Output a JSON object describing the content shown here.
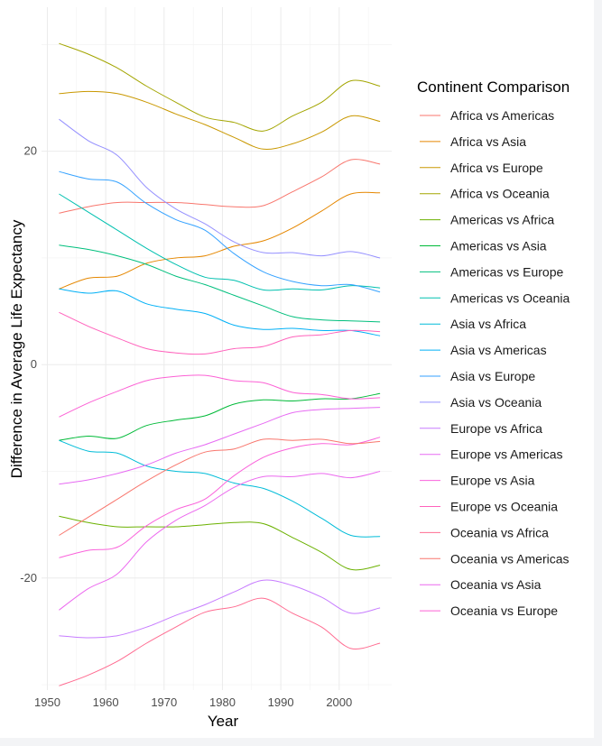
{
  "chart_data": {
    "type": "line",
    "title": "",
    "xlabel": "Year",
    "ylabel": "Difference in Average Life Expectancy",
    "xlim": [
      1949,
      2009
    ],
    "ylim": [
      -30.5,
      33.5
    ],
    "x_ticks": [
      1950,
      1960,
      1970,
      1980,
      1990,
      2000
    ],
    "y_ticks": [
      20,
      0,
      -20
    ],
    "grid": true,
    "legend": {
      "title": "Continent Comparison",
      "position": "right"
    },
    "x": [
      1952,
      1957,
      1962,
      1967,
      1972,
      1977,
      1982,
      1987,
      1992,
      1997,
      2002,
      2007
    ],
    "series": [
      {
        "name": "Africa vs Americas",
        "color": "#F8766D",
        "values": [
          14.2,
          14.8,
          15.2,
          15.2,
          15.2,
          15.0,
          14.8,
          14.9,
          16.2,
          17.6,
          19.2,
          18.8
        ]
      },
      {
        "name": "Africa vs Asia",
        "color": "#E58700",
        "values": [
          7.1,
          8.1,
          8.3,
          9.5,
          10.0,
          10.2,
          11.1,
          11.6,
          12.8,
          14.4,
          16.0,
          16.1
        ]
      },
      {
        "name": "Africa vs Europe",
        "color": "#C99800",
        "values": [
          25.4,
          25.6,
          25.4,
          24.6,
          23.5,
          22.5,
          21.3,
          20.2,
          20.7,
          21.8,
          23.3,
          22.8
        ]
      },
      {
        "name": "Africa vs Oceania",
        "color": "#A3A500",
        "values": [
          30.1,
          29.1,
          27.8,
          26.1,
          24.6,
          23.2,
          22.7,
          21.9,
          23.3,
          24.6,
          26.6,
          26.1
        ]
      },
      {
        "name": "Americas vs Africa",
        "color": "#6BB100",
        "values": [
          -14.2,
          -14.8,
          -15.2,
          -15.2,
          -15.2,
          -15.0,
          -14.8,
          -14.9,
          -16.2,
          -17.6,
          -19.2,
          -18.8
        ]
      },
      {
        "name": "Americas vs Asia",
        "color": "#00BA38",
        "values": [
          -7.1,
          -6.7,
          -6.9,
          -5.7,
          -5.2,
          -4.8,
          -3.7,
          -3.3,
          -3.4,
          -3.2,
          -3.2,
          -2.7
        ]
      },
      {
        "name": "Americas vs Europe",
        "color": "#00BF7D",
        "values": [
          11.2,
          10.8,
          10.2,
          9.4,
          8.3,
          7.5,
          6.5,
          5.5,
          4.5,
          4.2,
          4.1,
          4.0
        ]
      },
      {
        "name": "Americas vs Oceania",
        "color": "#00C0AF",
        "values": [
          16.0,
          14.3,
          12.6,
          10.9,
          9.4,
          8.2,
          7.9,
          7.0,
          7.1,
          7.0,
          7.4,
          7.2
        ]
      },
      {
        "name": "Asia vs Africa",
        "color": "#00BCD8",
        "values": [
          -7.1,
          -8.1,
          -8.3,
          -9.5,
          -10.0,
          -10.2,
          -11.1,
          -11.6,
          -12.8,
          -14.4,
          -16.0,
          -16.1
        ]
      },
      {
        "name": "Asia vs Americas",
        "color": "#00B0F6",
        "values": [
          7.1,
          6.7,
          6.9,
          5.7,
          5.2,
          4.8,
          3.7,
          3.3,
          3.4,
          3.2,
          3.2,
          2.7
        ]
      },
      {
        "name": "Asia vs Europe",
        "color": "#35A2FF",
        "values": [
          18.1,
          17.4,
          17.1,
          15.1,
          13.6,
          12.6,
          10.4,
          8.7,
          7.8,
          7.4,
          7.5,
          6.8
        ]
      },
      {
        "name": "Asia vs Oceania",
        "color": "#9590FF",
        "values": [
          23.0,
          21.0,
          19.6,
          16.6,
          14.6,
          13.2,
          11.5,
          10.5,
          10.5,
          10.2,
          10.6,
          10.0
        ]
      },
      {
        "name": "Europe vs Africa",
        "color": "#C77CFF",
        "values": [
          -25.4,
          -25.6,
          -25.4,
          -24.6,
          -23.5,
          -22.5,
          -21.3,
          -20.2,
          -20.7,
          -21.8,
          -23.3,
          -22.8
        ]
      },
      {
        "name": "Europe vs Americas",
        "color": "#E76BF3",
        "values": [
          -11.2,
          -10.8,
          -10.2,
          -9.4,
          -8.3,
          -7.5,
          -6.5,
          -5.5,
          -4.5,
          -4.2,
          -4.1,
          -4.0
        ]
      },
      {
        "name": "Europe vs Asia",
        "color": "#FA62DB",
        "values": [
          -18.1,
          -17.4,
          -17.1,
          -15.1,
          -13.6,
          -12.6,
          -10.4,
          -8.7,
          -7.8,
          -7.4,
          -7.5,
          -6.8
        ]
      },
      {
        "name": "Europe vs Oceania",
        "color": "#FF62BC",
        "values": [
          4.9,
          3.6,
          2.5,
          1.5,
          1.1,
          1.0,
          1.5,
          1.7,
          2.6,
          2.8,
          3.2,
          3.1
        ]
      },
      {
        "name": "Oceania vs Africa",
        "color": "#FF6C91",
        "values": [
          -30.1,
          -29.1,
          -27.8,
          -26.1,
          -24.6,
          -23.2,
          -22.7,
          -21.9,
          -23.3,
          -24.6,
          -26.6,
          -26.1
        ]
      },
      {
        "name": "Oceania vs Americas",
        "color": "#F8766D",
        "values": [
          -16.0,
          -14.3,
          -12.6,
          -10.9,
          -9.4,
          -8.2,
          -7.9,
          -7.0,
          -7.1,
          -7.0,
          -7.4,
          -7.2
        ]
      },
      {
        "name": "Oceania vs Asia",
        "color": "#EC69EF",
        "values": [
          -23.0,
          -21.0,
          -19.6,
          -16.6,
          -14.6,
          -13.2,
          -11.5,
          -10.5,
          -10.5,
          -10.2,
          -10.6,
          -10.0
        ]
      },
      {
        "name": "Oceania vs Europe",
        "color": "#FC61D5",
        "values": [
          -4.9,
          -3.6,
          -2.5,
          -1.5,
          -1.1,
          -1.0,
          -1.5,
          -1.7,
          -2.6,
          -2.8,
          -3.2,
          -3.1
        ]
      }
    ]
  }
}
